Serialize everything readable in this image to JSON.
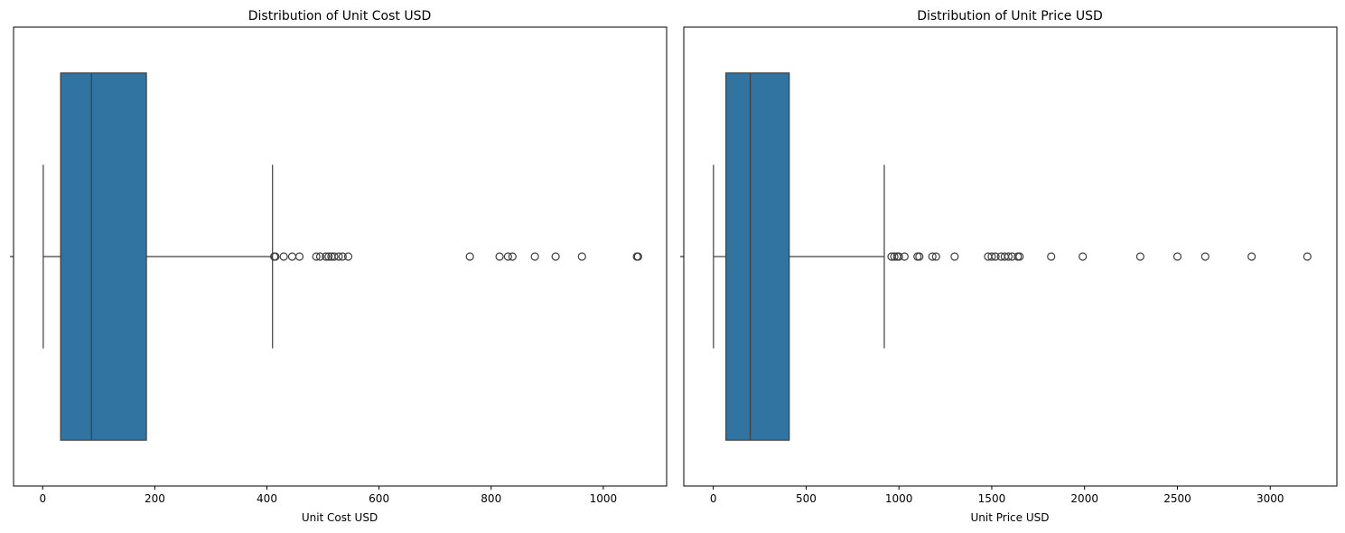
{
  "chart_data": [
    {
      "type": "boxplot",
      "title": "Distribution of Unit Cost USD",
      "xlabel": "Unit Cost USD",
      "ylabel": "",
      "xlim": [
        -52,
        1113
      ],
      "xticks": [
        0,
        200,
        400,
        600,
        800,
        1000
      ],
      "xtick_labels": [
        "0",
        "200",
        "400",
        "600",
        "800",
        "1000"
      ],
      "box": {
        "whisker_low": 1,
        "q1": 32,
        "median": 87,
        "q3": 185,
        "whisker_high": 410
      },
      "outliers": [
        413,
        415,
        430,
        445,
        458,
        488,
        495,
        505,
        510,
        515,
        520,
        528,
        535,
        545,
        762,
        815,
        830,
        838,
        878,
        915,
        962,
        1060,
        1062
      ],
      "color": "#3274a1",
      "edge_color": "#3f3f3f"
    },
    {
      "type": "boxplot",
      "title": "Distribution of Unit Price USD",
      "xlabel": "Unit Price USD",
      "ylabel": "",
      "xlim": [
        -159,
        3359
      ],
      "xticks": [
        0,
        500,
        1000,
        1500,
        2000,
        2500,
        3000
      ],
      "xtick_labels": [
        "0",
        "500",
        "1000",
        "1500",
        "2000",
        "2500",
        "3000"
      ],
      "box": {
        "whisker_low": 1,
        "q1": 68,
        "median": 199,
        "q3": 409,
        "whisker_high": 921
      },
      "outliers": [
        960,
        975,
        990,
        1000,
        1030,
        1100,
        1110,
        1180,
        1200,
        1300,
        1480,
        1500,
        1520,
        1550,
        1570,
        1590,
        1610,
        1640,
        1650,
        1820,
        1990,
        2300,
        2500,
        2650,
        2900,
        3200
      ],
      "color": "#3274a1",
      "edge_color": "#3f3f3f"
    }
  ]
}
